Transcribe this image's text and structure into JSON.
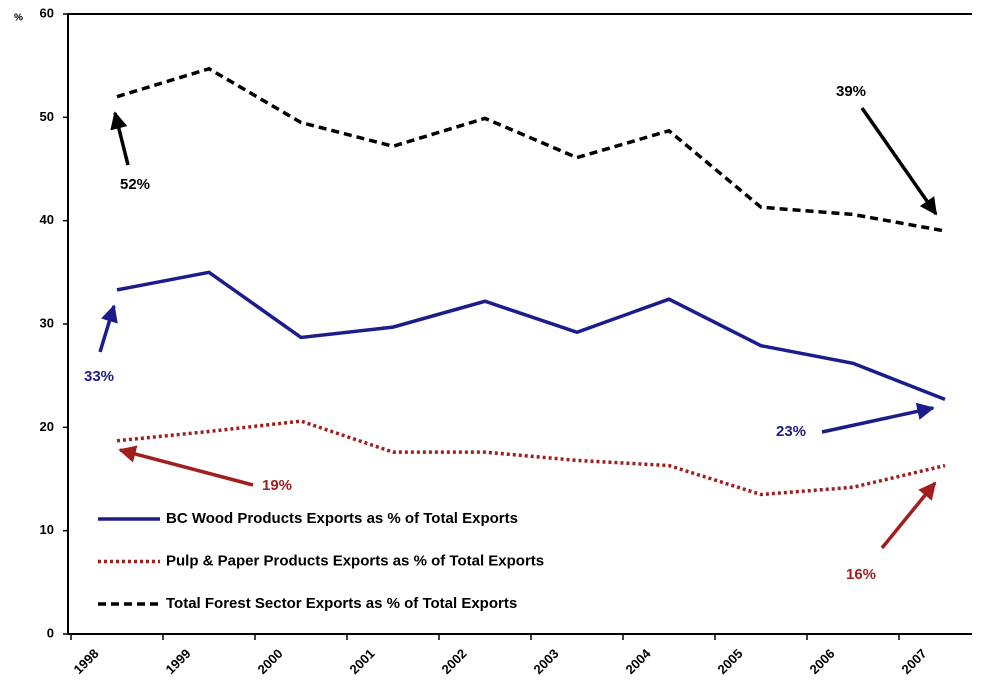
{
  "chart_data": {
    "type": "line",
    "y_label": "%",
    "categories": [
      "1998",
      "1999",
      "2000",
      "2001",
      "2002",
      "2003",
      "2004",
      "2005",
      "2006",
      "2007"
    ],
    "series": [
      {
        "name": "BC Wood Products Exports as % of Total Exports",
        "color": "#1c1c8a",
        "dash": "solid",
        "values": [
          33.3,
          35.0,
          28.7,
          29.7,
          32.2,
          29.2,
          32.4,
          27.9,
          26.2,
          22.7
        ]
      },
      {
        "name": "Pulp & Paper Products Exports as % of Total Exports",
        "color": "#a01e1e",
        "dash": "dotted",
        "values": [
          18.7,
          19.6,
          20.6,
          17.6,
          17.6,
          16.8,
          16.3,
          13.5,
          14.2,
          16.3
        ]
      },
      {
        "name": "Total Forest Sector Exports as % of Total Exports",
        "color": "#000000",
        "dash": "dashed",
        "values": [
          52.0,
          54.7,
          49.5,
          47.2,
          49.9,
          46.1,
          48.7,
          41.3,
          40.6,
          39.0
        ]
      }
    ],
    "ylim": [
      0,
      60
    ],
    "yticks": [
      0,
      10,
      20,
      30,
      40,
      50,
      60
    ],
    "grid": false,
    "annotations": [
      "52%",
      "39%",
      "33%",
      "23%",
      "19%",
      "16%"
    ]
  }
}
